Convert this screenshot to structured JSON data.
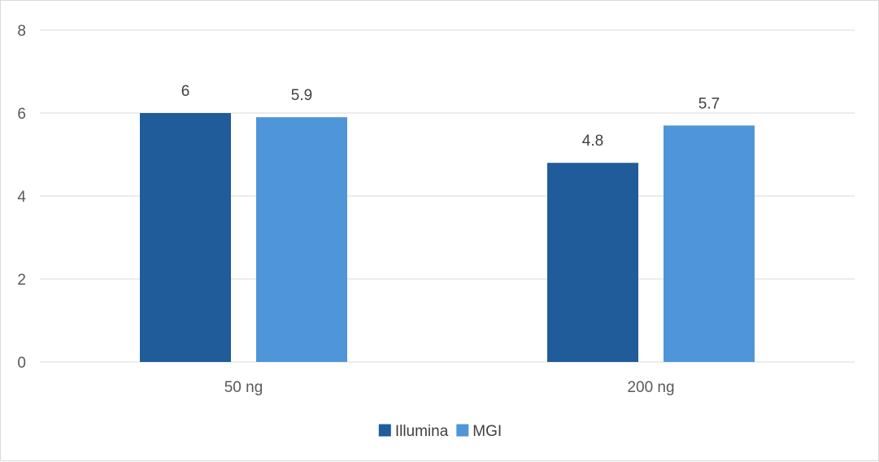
{
  "chart_data": {
    "type": "bar",
    "title": "",
    "xlabel": "",
    "ylabel": "",
    "categories": [
      "50 ng",
      "200 ng"
    ],
    "series": [
      {
        "name": "Illumina",
        "values": [
          6,
          4.8
        ],
        "color": "#1f5c99"
      },
      {
        "name": "MGI",
        "values": [
          5.9,
          5.7
        ],
        "color": "#4f95d9"
      }
    ],
    "data_labels": [
      [
        "6",
        "4.8"
      ],
      [
        "5.9",
        "5.7"
      ]
    ],
    "ylim": [
      0,
      8
    ],
    "yticks": [
      0,
      2,
      4,
      6,
      8
    ],
    "grid": true,
    "legend_position": "bottom"
  },
  "colors": {
    "gridline": "#d9d9d9",
    "text": "#595959"
  }
}
